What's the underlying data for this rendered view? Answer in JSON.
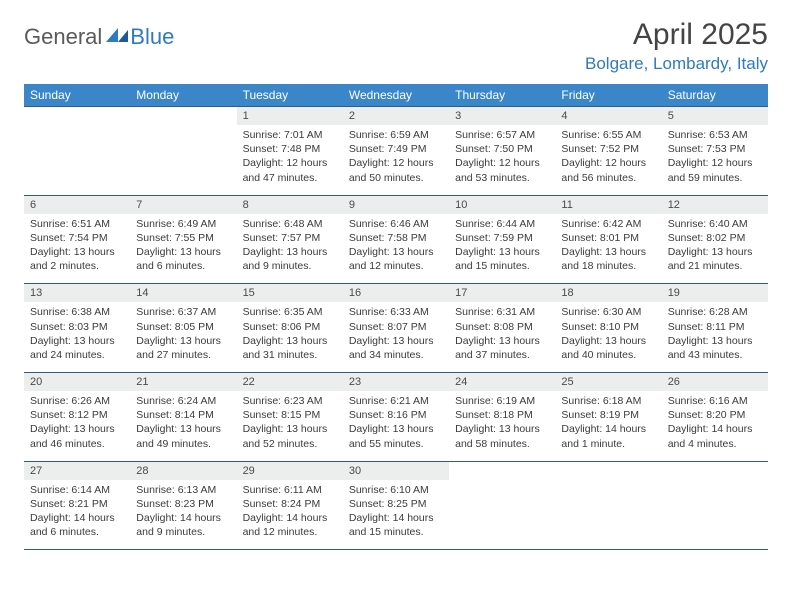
{
  "brand": {
    "part1": "General",
    "part2": "Blue"
  },
  "header": {
    "month": "April 2025",
    "location": "Bolgare, Lombardy, Italy"
  },
  "colors": {
    "header_bg": "#3a86c8",
    "header_text": "#ffffff",
    "row_border": "#2f5b84",
    "daynum_bg": "#eceded",
    "brand_blue": "#2f7bbf"
  },
  "day_labels": [
    "Sunday",
    "Monday",
    "Tuesday",
    "Wednesday",
    "Thursday",
    "Friday",
    "Saturday"
  ],
  "weeks": [
    [
      null,
      null,
      {
        "n": "1",
        "sr": "7:01 AM",
        "ss": "7:48 PM",
        "dl": "12 hours and 47 minutes."
      },
      {
        "n": "2",
        "sr": "6:59 AM",
        "ss": "7:49 PM",
        "dl": "12 hours and 50 minutes."
      },
      {
        "n": "3",
        "sr": "6:57 AM",
        "ss": "7:50 PM",
        "dl": "12 hours and 53 minutes."
      },
      {
        "n": "4",
        "sr": "6:55 AM",
        "ss": "7:52 PM",
        "dl": "12 hours and 56 minutes."
      },
      {
        "n": "5",
        "sr": "6:53 AM",
        "ss": "7:53 PM",
        "dl": "12 hours and 59 minutes."
      }
    ],
    [
      {
        "n": "6",
        "sr": "6:51 AM",
        "ss": "7:54 PM",
        "dl": "13 hours and 2 minutes."
      },
      {
        "n": "7",
        "sr": "6:49 AM",
        "ss": "7:55 PM",
        "dl": "13 hours and 6 minutes."
      },
      {
        "n": "8",
        "sr": "6:48 AM",
        "ss": "7:57 PM",
        "dl": "13 hours and 9 minutes."
      },
      {
        "n": "9",
        "sr": "6:46 AM",
        "ss": "7:58 PM",
        "dl": "13 hours and 12 minutes."
      },
      {
        "n": "10",
        "sr": "6:44 AM",
        "ss": "7:59 PM",
        "dl": "13 hours and 15 minutes."
      },
      {
        "n": "11",
        "sr": "6:42 AM",
        "ss": "8:01 PM",
        "dl": "13 hours and 18 minutes."
      },
      {
        "n": "12",
        "sr": "6:40 AM",
        "ss": "8:02 PM",
        "dl": "13 hours and 21 minutes."
      }
    ],
    [
      {
        "n": "13",
        "sr": "6:38 AM",
        "ss": "8:03 PM",
        "dl": "13 hours and 24 minutes."
      },
      {
        "n": "14",
        "sr": "6:37 AM",
        "ss": "8:05 PM",
        "dl": "13 hours and 27 minutes."
      },
      {
        "n": "15",
        "sr": "6:35 AM",
        "ss": "8:06 PM",
        "dl": "13 hours and 31 minutes."
      },
      {
        "n": "16",
        "sr": "6:33 AM",
        "ss": "8:07 PM",
        "dl": "13 hours and 34 minutes."
      },
      {
        "n": "17",
        "sr": "6:31 AM",
        "ss": "8:08 PM",
        "dl": "13 hours and 37 minutes."
      },
      {
        "n": "18",
        "sr": "6:30 AM",
        "ss": "8:10 PM",
        "dl": "13 hours and 40 minutes."
      },
      {
        "n": "19",
        "sr": "6:28 AM",
        "ss": "8:11 PM",
        "dl": "13 hours and 43 minutes."
      }
    ],
    [
      {
        "n": "20",
        "sr": "6:26 AM",
        "ss": "8:12 PM",
        "dl": "13 hours and 46 minutes."
      },
      {
        "n": "21",
        "sr": "6:24 AM",
        "ss": "8:14 PM",
        "dl": "13 hours and 49 minutes."
      },
      {
        "n": "22",
        "sr": "6:23 AM",
        "ss": "8:15 PM",
        "dl": "13 hours and 52 minutes."
      },
      {
        "n": "23",
        "sr": "6:21 AM",
        "ss": "8:16 PM",
        "dl": "13 hours and 55 minutes."
      },
      {
        "n": "24",
        "sr": "6:19 AM",
        "ss": "8:18 PM",
        "dl": "13 hours and 58 minutes."
      },
      {
        "n": "25",
        "sr": "6:18 AM",
        "ss": "8:19 PM",
        "dl": "14 hours and 1 minute."
      },
      {
        "n": "26",
        "sr": "6:16 AM",
        "ss": "8:20 PM",
        "dl": "14 hours and 4 minutes."
      }
    ],
    [
      {
        "n": "27",
        "sr": "6:14 AM",
        "ss": "8:21 PM",
        "dl": "14 hours and 6 minutes."
      },
      {
        "n": "28",
        "sr": "6:13 AM",
        "ss": "8:23 PM",
        "dl": "14 hours and 9 minutes."
      },
      {
        "n": "29",
        "sr": "6:11 AM",
        "ss": "8:24 PM",
        "dl": "14 hours and 12 minutes."
      },
      {
        "n": "30",
        "sr": "6:10 AM",
        "ss": "8:25 PM",
        "dl": "14 hours and 15 minutes."
      },
      null,
      null,
      null
    ]
  ],
  "labels": {
    "sunrise": "Sunrise: ",
    "sunset": "Sunset: ",
    "daylight": "Daylight: "
  }
}
